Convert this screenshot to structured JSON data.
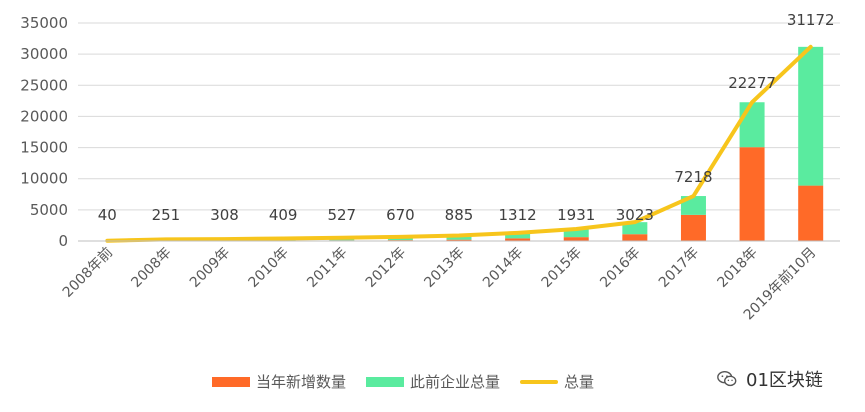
{
  "chart_data": {
    "type": "bar",
    "stacked": true,
    "categories": [
      "2008年前",
      "2008年",
      "2009年",
      "2010年",
      "2011年",
      "2012年",
      "2013年",
      "2014年",
      "2015年",
      "2016年",
      "2017年",
      "2018年",
      "2019年前10月"
    ],
    "series": [
      {
        "name": "当年新增数量",
        "type": "bar",
        "color": "#ff6a28",
        "values": [
          40,
          211,
          57,
          101,
          118,
          143,
          215,
          427,
          619,
          1092,
          4195,
          15059,
          8895
        ]
      },
      {
        "name": "此前企业总量",
        "type": "bar",
        "color": "#5aeb9f",
        "values": [
          0,
          40,
          251,
          308,
          409,
          527,
          670,
          885,
          1312,
          1931,
          3023,
          7218,
          22277
        ]
      },
      {
        "name": "总量",
        "type": "line",
        "color": "#f7c51c",
        "values": [
          40,
          251,
          308,
          409,
          527,
          670,
          885,
          1312,
          1931,
          3023,
          7218,
          22277,
          31172
        ]
      }
    ],
    "data_labels": [
      "40",
      "251",
      "308",
      "409",
      "527",
      "670",
      "885",
      "1312",
      "1931",
      "3023",
      "7218",
      "22277",
      "31172"
    ],
    "y_ticks": [
      "0",
      "5000",
      "10000",
      "15000",
      "20000",
      "25000",
      "30000",
      "35000"
    ],
    "ylim": [
      0,
      35000
    ],
    "grid": "horizontal",
    "legend_position": "bottom"
  },
  "watermark": {
    "text": "01区块链"
  }
}
